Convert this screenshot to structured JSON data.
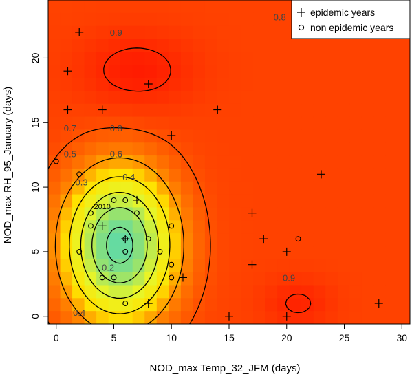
{
  "chart_data": {
    "type": "heatmap",
    "xlabel": "NOD_max Temp_32_JFM (days)",
    "ylabel": "NOD_max RH_95_January (days)",
    "xlim": [
      -0.7,
      30.7
    ],
    "ylim": [
      -0.6,
      24.5
    ],
    "x_ticks": [
      0,
      5,
      10,
      15,
      20,
      25,
      30
    ],
    "y_ticks": [
      0,
      5,
      10,
      15,
      20
    ],
    "legend": {
      "position": "top-right",
      "entries": [
        {
          "symbol": "plus",
          "label": "epidemic years"
        },
        {
          "symbol": "circle",
          "label": "non epidemic years"
        }
      ]
    },
    "contour_levels": [
      "0.2",
      "0.3",
      "0.4",
      "0.5",
      "0.6",
      "0.7",
      "0.8",
      "0.9"
    ],
    "contour_labels": [
      {
        "text": "0.9",
        "x": 5.2,
        "y": 22.0
      },
      {
        "text": "0.8",
        "x": 19.4,
        "y": 23.2
      },
      {
        "text": "0.8",
        "x": 5.2,
        "y": 14.6
      },
      {
        "text": "0.7",
        "x": 1.2,
        "y": 14.6
      },
      {
        "text": "0.6",
        "x": 5.2,
        "y": 12.6
      },
      {
        "text": "0.5",
        "x": 1.2,
        "y": 12.6
      },
      {
        "text": "0.4",
        "x": 6.3,
        "y": 10.8
      },
      {
        "text": "0.3",
        "x": 2.2,
        "y": 10.4
      },
      {
        "text": "0.2",
        "x": 4.5,
        "y": 3.8
      },
      {
        "text": "0.4",
        "x": 2.0,
        "y": 0.3
      },
      {
        "text": "0.9",
        "x": 20.2,
        "y": 3.0
      }
    ],
    "annotations": [
      {
        "text": "2010",
        "x": 4.0,
        "y": 8.5
      }
    ],
    "epidemic_years": [
      [
        2,
        22
      ],
      [
        1,
        19
      ],
      [
        8,
        18
      ],
      [
        1,
        16
      ],
      [
        4,
        16
      ],
      [
        14,
        16
      ],
      [
        10,
        14
      ],
      [
        23,
        11
      ],
      [
        7,
        9
      ],
      [
        4,
        7
      ],
      [
        17,
        8
      ],
      [
        18,
        6
      ],
      [
        20,
        5
      ],
      [
        17,
        4
      ],
      [
        11,
        3
      ],
      [
        8,
        1
      ],
      [
        15,
        0
      ],
      [
        20,
        0
      ],
      [
        28,
        1
      ],
      [
        6,
        6
      ]
    ],
    "non_epidemic_years": [
      [
        0,
        12
      ],
      [
        2,
        11
      ],
      [
        5,
        9
      ],
      [
        6,
        9
      ],
      [
        3,
        8
      ],
      [
        7,
        8
      ],
      [
        3,
        7
      ],
      [
        10,
        7
      ],
      [
        6,
        6
      ],
      [
        8,
        6
      ],
      [
        21,
        6
      ],
      [
        2,
        5
      ],
      [
        6,
        5
      ],
      [
        9,
        5
      ],
      [
        10,
        4
      ],
      [
        4,
        3
      ],
      [
        5,
        3
      ],
      [
        10,
        3
      ],
      [
        6,
        1
      ]
    ],
    "colors": {
      "low": "#3fd6c9",
      "mid": "#ffff00",
      "high": "#ff2a00",
      "frame": "#000000"
    }
  }
}
